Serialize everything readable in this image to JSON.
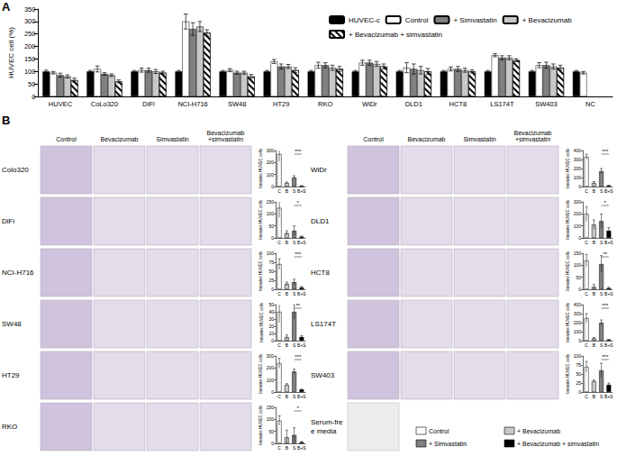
{
  "panel_labels": [
    "A",
    "B"
  ],
  "panel_b": {
    "columns": [
      "Control",
      "Bevacizumab",
      "Simvastatin",
      "Bevacizumab\n+simvastatin"
    ],
    "serum_free_label": "Serum-free media",
    "legend": [
      {
        "name": "Control",
        "color": "#ffffff"
      },
      {
        "name": "+ Bevacizumab",
        "color": "#c8c8c8"
      },
      {
        "name": "+ Simvastatin",
        "color": "#808080"
      },
      {
        "name": "+ Bevacizumab + simvastatin",
        "color": "#000000"
      }
    ]
  },
  "chart_data": [
    {
      "type": "bar",
      "ylabel": "HUVEC cell (%)",
      "categories": [
        "HUVEC",
        "CoLo320",
        "DiFi",
        "NCI-H716",
        "SW48",
        "HT29",
        "RKO",
        "WiDr",
        "DLD1",
        "HCT8",
        "LS174T",
        "SW403",
        "NC"
      ],
      "series": [
        {
          "name": "HUVEC-c",
          "color": "#000000",
          "values": [
            100,
            100,
            100,
            100,
            100,
            100,
            100,
            100,
            100,
            100,
            100,
            100,
            100
          ],
          "errors": [
            5,
            4,
            4,
            4,
            4,
            4,
            4,
            4,
            4,
            4,
            4,
            4,
            4
          ]
        },
        {
          "name": "Control",
          "color": "#ffffff",
          "values": [
            95,
            110,
            105,
            300,
            105,
            140,
            125,
            135,
            115,
            110,
            165,
            125,
            95
          ],
          "errors": [
            5,
            12,
            8,
            30,
            6,
            8,
            12,
            10,
            20,
            8,
            6,
            10,
            5
          ]
        },
        {
          "name": "+ Simvastatin",
          "color": "#808080",
          "values": [
            85,
            90,
            105,
            270,
            95,
            120,
            125,
            135,
            110,
            110,
            155,
            125,
            null
          ],
          "errors": [
            8,
            5,
            8,
            25,
            6,
            10,
            10,
            10,
            20,
            10,
            8,
            12,
            null
          ]
        },
        {
          "name": "+ Bevacizumab",
          "color": "#c8c8c8",
          "values": [
            80,
            85,
            100,
            280,
            95,
            120,
            115,
            130,
            105,
            105,
            155,
            120,
            null
          ],
          "errors": [
            6,
            5,
            8,
            20,
            6,
            8,
            10,
            10,
            15,
            8,
            8,
            10,
            null
          ]
        },
        {
          "name": "+ Bevacizumab + simvastatin",
          "color": "#ffffff",
          "marker": "hatched",
          "values": [
            65,
            60,
            95,
            255,
            80,
            105,
            110,
            120,
            100,
            100,
            145,
            115,
            null
          ],
          "errors": [
            8,
            6,
            6,
            12,
            8,
            10,
            10,
            10,
            12,
            6,
            6,
            10,
            null
          ]
        }
      ],
      "ylim": [
        0,
        350
      ],
      "yticks": [
        0,
        50,
        100,
        150,
        200,
        250,
        300,
        350
      ],
      "grid": false,
      "legend": "top right"
    },
    {
      "type": "bar",
      "title": "Colo320",
      "ylabel": "Invasive HUVEC cells",
      "categories": [
        "C",
        "B",
        "S",
        "B+S"
      ],
      "values": [
        270,
        30,
        75,
        5
      ],
      "errors": [
        60,
        8,
        15,
        3
      ],
      "colors": [
        "#ffffff",
        "#c8c8c8",
        "#808080",
        "#000000"
      ],
      "ylim": [
        0,
        300
      ],
      "yticks": [
        0,
        100,
        200,
        300
      ],
      "significance": "***"
    },
    {
      "type": "bar",
      "title": "DiFi",
      "ylabel": "Invasive HUVEC cells",
      "categories": [
        "C",
        "B",
        "S",
        "B+S"
      ],
      "values": [
        125,
        20,
        30,
        5
      ],
      "errors": [
        40,
        10,
        20,
        3
      ],
      "colors": [
        "#ffffff",
        "#c8c8c8",
        "#808080",
        "#000000"
      ],
      "ylim": [
        0,
        150
      ],
      "yticks": [
        0,
        50,
        100,
        150
      ],
      "significance": "*"
    },
    {
      "type": "bar",
      "title": "NCI-H716",
      "ylabel": "Invasive HUVEC cells",
      "categories": [
        "C",
        "B",
        "S",
        "B+S"
      ],
      "values": [
        70,
        15,
        20,
        5
      ],
      "errors": [
        15,
        5,
        8,
        3
      ],
      "colors": [
        "#ffffff",
        "#c8c8c8",
        "#808080",
        "#000000"
      ],
      "ylim": [
        0,
        100
      ],
      "yticks": [
        0,
        25,
        50,
        75,
        100
      ],
      "significance": "***"
    },
    {
      "type": "bar",
      "title": "SW48",
      "ylabel": "Invasive HUVEC cells",
      "categories": [
        "C",
        "B",
        "S",
        "B+S"
      ],
      "values": [
        40,
        5,
        40,
        5
      ],
      "errors": [
        15,
        3,
        10,
        2
      ],
      "colors": [
        "#ffffff",
        "#c8c8c8",
        "#808080",
        "#000000"
      ],
      "ylim": [
        0,
        50
      ],
      "yticks": [
        0,
        10,
        20,
        30,
        40,
        50
      ],
      "significance": "**"
    },
    {
      "type": "bar",
      "title": "HT29",
      "ylabel": "Invasive HUVEC cells",
      "categories": [
        "C",
        "B",
        "S",
        "B+S"
      ],
      "values": [
        240,
        60,
        170,
        20
      ],
      "errors": [
        40,
        10,
        20,
        5
      ],
      "colors": [
        "#ffffff",
        "#c8c8c8",
        "#808080",
        "#000000"
      ],
      "ylim": [
        0,
        300
      ],
      "yticks": [
        0,
        100,
        200,
        300
      ],
      "significance": "***"
    },
    {
      "type": "bar",
      "title": "RKO",
      "ylabel": "Invasive HUVEC cells",
      "categories": [
        "C",
        "B",
        "S",
        "B+S"
      ],
      "values": [
        95,
        25,
        35,
        5
      ],
      "errors": [
        20,
        30,
        30,
        3
      ],
      "colors": [
        "#ffffff",
        "#c8c8c8",
        "#808080",
        "#000000"
      ],
      "ylim": [
        0,
        150
      ],
      "yticks": [
        0,
        50,
        100,
        150
      ],
      "significance": "*"
    },
    {
      "type": "bar",
      "title": "WiDr",
      "ylabel": "Invasive HUVEC cells",
      "categories": [
        "C",
        "B",
        "S",
        "B+S"
      ],
      "values": [
        330,
        40,
        170,
        10
      ],
      "errors": [
        30,
        15,
        30,
        5
      ],
      "colors": [
        "#ffffff",
        "#c8c8c8",
        "#808080",
        "#000000"
      ],
      "ylim": [
        0,
        400
      ],
      "yticks": [
        0,
        100,
        200,
        300,
        400
      ],
      "significance": "***"
    },
    {
      "type": "bar",
      "title": "DLD1",
      "ylabel": "Invasive HUVEC cells",
      "categories": [
        "C",
        "B",
        "S",
        "B+S"
      ],
      "values": [
        200,
        110,
        140,
        60
      ],
      "errors": [
        60,
        40,
        60,
        25
      ],
      "colors": [
        "#ffffff",
        "#c8c8c8",
        "#808080",
        "#000000"
      ],
      "ylim": [
        0,
        300
      ],
      "yticks": [
        0,
        100,
        200,
        300
      ],
      "significance": "*"
    },
    {
      "type": "bar",
      "title": "HCT8",
      "ylabel": "Invasive HUVEC cells",
      "categories": [
        "C",
        "B",
        "S",
        "B+S"
      ],
      "values": [
        120,
        10,
        105,
        5
      ],
      "errors": [
        25,
        10,
        35,
        3
      ],
      "colors": [
        "#ffffff",
        "#c8c8c8",
        "#808080",
        "#000000"
      ],
      "ylim": [
        0,
        150
      ],
      "yticks": [
        0,
        50,
        100,
        150
      ],
      "significance": "**"
    },
    {
      "type": "bar",
      "title": "LS174T",
      "ylabel": "Invasive HUVEC cells",
      "categories": [
        "C",
        "B",
        "S",
        "B+S"
      ],
      "values": [
        250,
        25,
        200,
        10
      ],
      "errors": [
        50,
        10,
        30,
        5
      ],
      "colors": [
        "#ffffff",
        "#c8c8c8",
        "#808080",
        "#000000"
      ],
      "ylim": [
        0,
        400
      ],
      "yticks": [
        0,
        100,
        200,
        300,
        400
      ],
      "significance": "***"
    },
    {
      "type": "bar",
      "title": "SW403",
      "ylabel": "Invasive HUVEC cells",
      "categories": [
        "C",
        "B",
        "S",
        "B+S"
      ],
      "values": [
        70,
        30,
        60,
        20
      ],
      "errors": [
        15,
        3,
        20,
        5
      ],
      "colors": [
        "#ffffff",
        "#c8c8c8",
        "#808080",
        "#000000"
      ],
      "ylim": [
        0,
        100
      ],
      "yticks": [
        0,
        25,
        50,
        75,
        100
      ],
      "significance": "***"
    }
  ]
}
